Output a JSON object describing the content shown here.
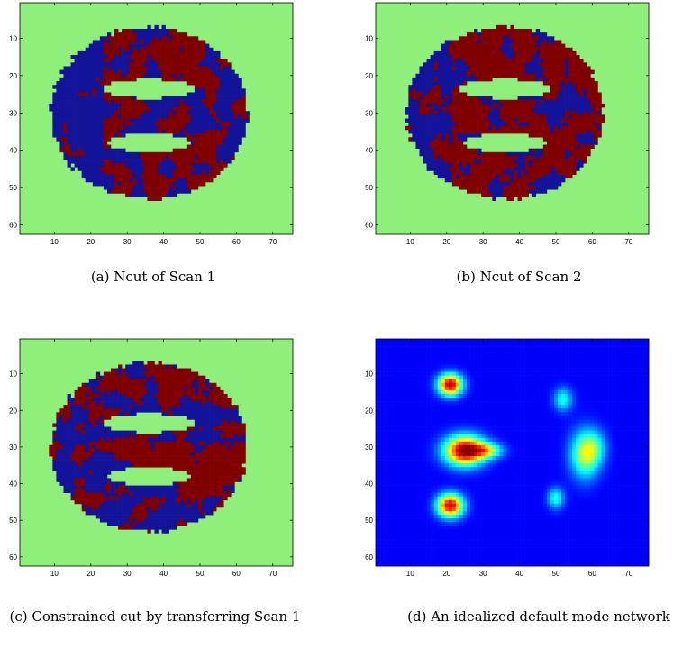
{
  "figure": {
    "panels": [
      {
        "id": "a",
        "kind": "segmentation",
        "caption": "(a) Ncut of Scan 1",
        "x_ticks": [
          "10",
          "20",
          "30",
          "40",
          "50",
          "60",
          "70"
        ],
        "y_ticks": [
          "10",
          "20",
          "30",
          "40",
          "50",
          "60"
        ],
        "x_range": [
          1,
          75
        ],
        "y_range": [
          1,
          62
        ],
        "colors": {
          "background": "#8ef07a",
          "class1": "#13139a",
          "class2": "#800000"
        },
        "seed": 7
      },
      {
        "id": "b",
        "kind": "segmentation",
        "caption": "(b) Ncut of Scan 2",
        "x_ticks": [
          "10",
          "20",
          "30",
          "40",
          "50",
          "60",
          "70"
        ],
        "y_ticks": [
          "10",
          "20",
          "30",
          "40",
          "50",
          "60"
        ],
        "x_range": [
          1,
          75
        ],
        "y_range": [
          1,
          62
        ],
        "colors": {
          "background": "#8ef07a",
          "class1": "#13139a",
          "class2": "#800000"
        },
        "seed": 19
      },
      {
        "id": "c",
        "kind": "segmentation",
        "caption": "(c) Constrained cut by transferring Scan 1",
        "x_ticks": [
          "10",
          "20",
          "30",
          "40",
          "50",
          "60",
          "70"
        ],
        "y_ticks": [
          "10",
          "20",
          "30",
          "40",
          "50",
          "60"
        ],
        "x_range": [
          1,
          75
        ],
        "y_range": [
          1,
          62
        ],
        "colors": {
          "background": "#8ef07a",
          "class1": "#13139a",
          "class2": "#800000"
        },
        "seed": 31
      },
      {
        "id": "d",
        "kind": "heatmap",
        "caption": "(d) An idealized default mode network",
        "x_ticks": [
          "10",
          "20",
          "30",
          "40",
          "50",
          "60",
          "70"
        ],
        "y_ticks": [
          "10",
          "20",
          "30",
          "40",
          "50",
          "60"
        ],
        "x_range": [
          1,
          75
        ],
        "y_range": [
          1,
          62
        ],
        "blobs": [
          {
            "x": 21,
            "y": 13,
            "sx": 2.3,
            "sy": 2.0,
            "amp": 0.95
          },
          {
            "x": 25,
            "y": 31,
            "sx": 3.8,
            "sy": 2.8,
            "amp": 1.0
          },
          {
            "x": 31,
            "y": 31,
            "sx": 3.0,
            "sy": 1.4,
            "amp": 0.45
          },
          {
            "x": 21,
            "y": 46,
            "sx": 2.5,
            "sy": 2.2,
            "amp": 0.92
          },
          {
            "x": 58,
            "y": 32,
            "sx": 2.8,
            "sy": 4.5,
            "amp": 0.5
          },
          {
            "x": 61,
            "y": 30,
            "sx": 2.2,
            "sy": 3.2,
            "amp": 0.2
          },
          {
            "x": 52,
            "y": 17,
            "sx": 1.8,
            "sy": 2.2,
            "amp": 0.32
          },
          {
            "x": 50,
            "y": 44,
            "sx": 1.6,
            "sy": 2.0,
            "amp": 0.33
          }
        ]
      }
    ]
  }
}
